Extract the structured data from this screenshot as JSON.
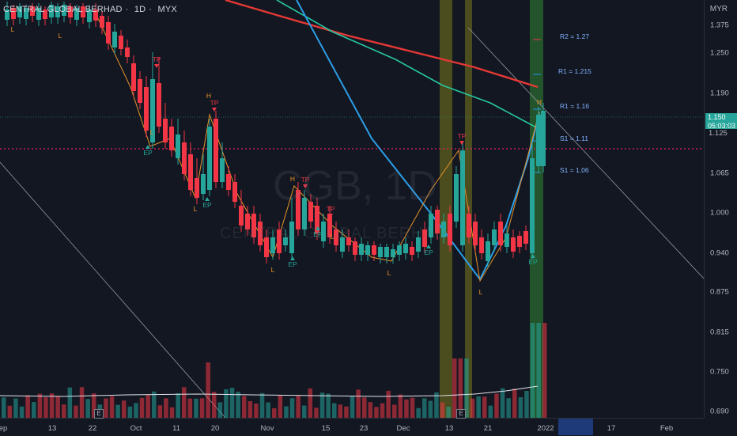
{
  "header": {
    "symbol": "CENTRAL GLOBAL BERHAD",
    "interval": "1D",
    "exchange": "MYX"
  },
  "currency_label": "MYR",
  "watermark": {
    "big": "CGB, 1D",
    "small": "CENTRAL GLOBAL BERHAD"
  },
  "price_axis": {
    "labels": [
      "1.375",
      "1.250",
      "1.190",
      "1.125",
      "1.065",
      "1.000",
      "0.940",
      "0.875",
      "0.815",
      "0.750",
      "0.690"
    ],
    "current_price": "1.150",
    "countdown": "05:03:03",
    "dotted_level": "1.125"
  },
  "time_axis": {
    "labels": [
      "ep",
      "13",
      "22",
      "Oct",
      "11",
      "20",
      "Nov",
      "15",
      "23",
      "Dec",
      "13",
      "21",
      "2022",
      "17",
      "Feb"
    ]
  },
  "levels": [
    {
      "label": "R2 = 1.27",
      "color": "#f23645"
    },
    {
      "label": "R1 = 1.215",
      "color": "#2196f3"
    },
    {
      "label": "R1 = 1.16",
      "color": "#2196f3"
    },
    {
      "label": "S1 = 1.11",
      "color": "#2196f3"
    },
    {
      "label": "S1 = 1.06",
      "color": "#2196f3"
    }
  ],
  "markers": {
    "ep": "EP",
    "tp": "TP",
    "l": "L",
    "h": "H",
    "e": "E"
  },
  "colors": {
    "up": "#26a69a",
    "down": "#f23645",
    "background": "#131722",
    "ma_red": "#e53935",
    "ma_green": "#26c6a0",
    "trend_blue": "#2c9ee8",
    "zigzag": "#e8932a",
    "highlight_yellow": "#7a7a1c",
    "highlight_green": "#2e7d32"
  }
}
